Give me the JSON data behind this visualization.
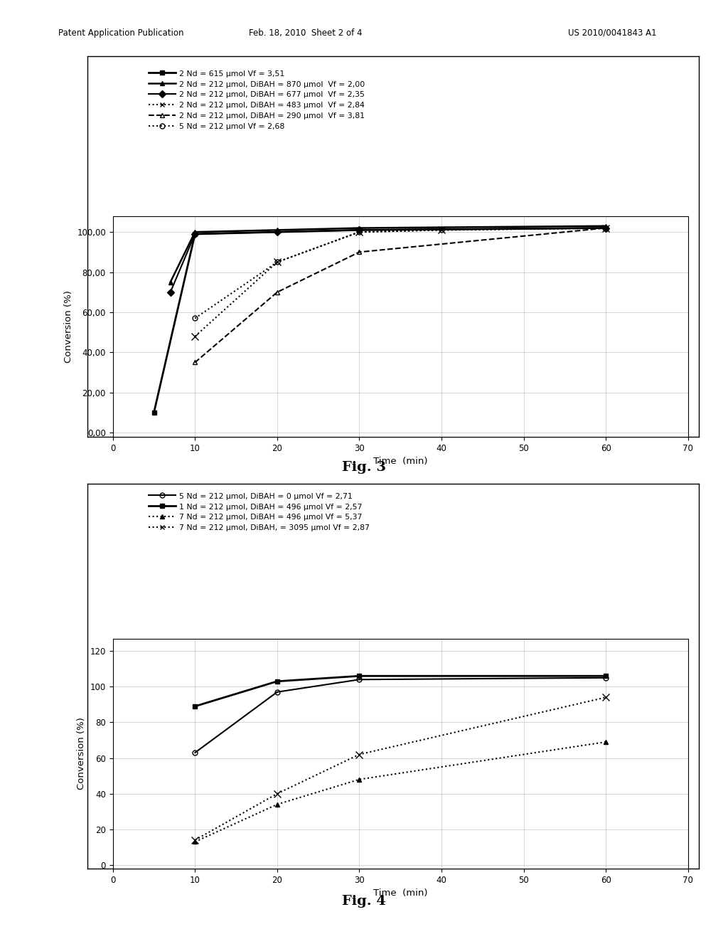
{
  "header_text_left": "Patent Application Publication",
  "header_text_mid": "Feb. 18, 2010  Sheet 2 of 4",
  "header_text_right": "US 2010/0041843 A1",
  "fig3": {
    "title": "Fig. 3",
    "xlabel": "Time  (min)",
    "ylabel": "Conversion (%)",
    "xlim": [
      0,
      70
    ],
    "yticks": [
      0,
      20,
      40,
      60,
      80,
      100
    ],
    "ytick_labels": [
      "0,00",
      "20,00",
      "40,00",
      "60,00",
      "80,00",
      "100,00"
    ],
    "xticks": [
      0,
      10,
      20,
      30,
      40,
      50,
      60,
      70
    ],
    "series": [
      {
        "label": "2 Nd = 615 μmol Vf = 3,51",
        "x": [
          5,
          10,
          30,
          60
        ],
        "y": [
          10,
          99,
          101,
          102
        ],
        "color": "#000000",
        "linestyle": "-",
        "marker": "s",
        "markersize": 5,
        "linewidth": 2.0,
        "markerfacecolor": "#000000",
        "dashes": []
      },
      {
        "label": "2 Nd = 212 μmol, DiBAH = 870 μmol  Vf = 2,00",
        "x": [
          7,
          10,
          20,
          30,
          60
        ],
        "y": [
          75,
          100,
          101,
          102,
          103
        ],
        "color": "#000000",
        "linestyle": "-",
        "marker": "^",
        "markersize": 5,
        "linewidth": 1.8,
        "markerfacecolor": "#000000",
        "dashes": []
      },
      {
        "label": "2 Nd = 212 μmol, DiBAH = 677 μmol  Vf = 2,35",
        "x": [
          7,
          10,
          20,
          30,
          60
        ],
        "y": [
          70,
          99,
          100,
          101,
          102
        ],
        "color": "#000000",
        "linestyle": "-",
        "marker": "D",
        "markersize": 5,
        "linewidth": 1.5,
        "markerfacecolor": "#000000",
        "dashes": []
      },
      {
        "label": "2 Nd = 212 μmol, DiBAH = 483 μmol  Vf = 2,84",
        "x": [
          10,
          20,
          30,
          40,
          60
        ],
        "y": [
          48,
          85,
          100,
          101,
          102
        ],
        "color": "#000000",
        "linestyle": ":",
        "marker": "x",
        "markersize": 7,
        "linewidth": 1.5,
        "markerfacecolor": "#000000",
        "dashes": []
      },
      {
        "label": "2 Nd = 212 μmol, DiBAH = 290 μmol  Vf = 3,81",
        "x": [
          10,
          20,
          30,
          60
        ],
        "y": [
          35,
          70,
          90,
          102
        ],
        "color": "#000000",
        "linestyle": "--",
        "marker": "^",
        "markersize": 5,
        "linewidth": 1.5,
        "markerfacecolor": "none",
        "dashes": [
          6,
          3,
          2,
          3
        ]
      },
      {
        "label": "5 Nd = 212 μmol Vf = 2,68",
        "x": [
          10,
          20,
          30,
          40,
          60
        ],
        "y": [
          57,
          85,
          100,
          101,
          102
        ],
        "color": "#000000",
        "linestyle": ":",
        "marker": "o",
        "markersize": 5,
        "linewidth": 1.5,
        "markerfacecolor": "none",
        "dashes": []
      }
    ]
  },
  "fig4": {
    "title": "Fig. 4",
    "xlabel": "Time  (min)",
    "ylabel": "Conversion (%)",
    "xlim": [
      0,
      70
    ],
    "yticks": [
      0,
      20,
      40,
      60,
      80,
      100,
      120
    ],
    "ytick_labels": [
      "0",
      "20",
      "40",
      "60",
      "80",
      "100",
      "120"
    ],
    "xticks": [
      0,
      10,
      20,
      30,
      40,
      50,
      60,
      70
    ],
    "series": [
      {
        "label": "5 Nd = 212 μmol, DiBAH = 0 μmol Vf = 2,71",
        "x": [
          10,
          20,
          30,
          60
        ],
        "y": [
          63,
          97,
          104,
          105
        ],
        "color": "#000000",
        "linestyle": "-",
        "marker": "o",
        "markersize": 5,
        "linewidth": 1.5,
        "markerfacecolor": "none"
      },
      {
        "label": "1 Nd = 212 μmol, DiBAH = 496 μmol Vf = 2,57",
        "x": [
          10,
          20,
          30,
          60
        ],
        "y": [
          89,
          103,
          106,
          106
        ],
        "color": "#000000",
        "linestyle": "-",
        "marker": "s",
        "markersize": 5,
        "linewidth": 2.0,
        "markerfacecolor": "#000000"
      },
      {
        "label": "7 Nd = 212 μmol, DiBAH = 496 μmol Vf = 5,37",
        "x": [
          10,
          20,
          30,
          60
        ],
        "y": [
          13,
          34,
          48,
          69
        ],
        "color": "#000000",
        "linestyle": ":",
        "marker": "^",
        "markersize": 5,
        "linewidth": 1.5,
        "markerfacecolor": "#000000"
      },
      {
        "label": "7 Nd = 212 μmol, DiBAH, = 3095 μmol Vf = 2,87",
        "x": [
          10,
          20,
          30,
          60
        ],
        "y": [
          14,
          40,
          62,
          94
        ],
        "color": "#000000",
        "linestyle": ":",
        "marker": "x",
        "markersize": 7,
        "linewidth": 1.5,
        "markerfacecolor": "#000000"
      }
    ]
  }
}
